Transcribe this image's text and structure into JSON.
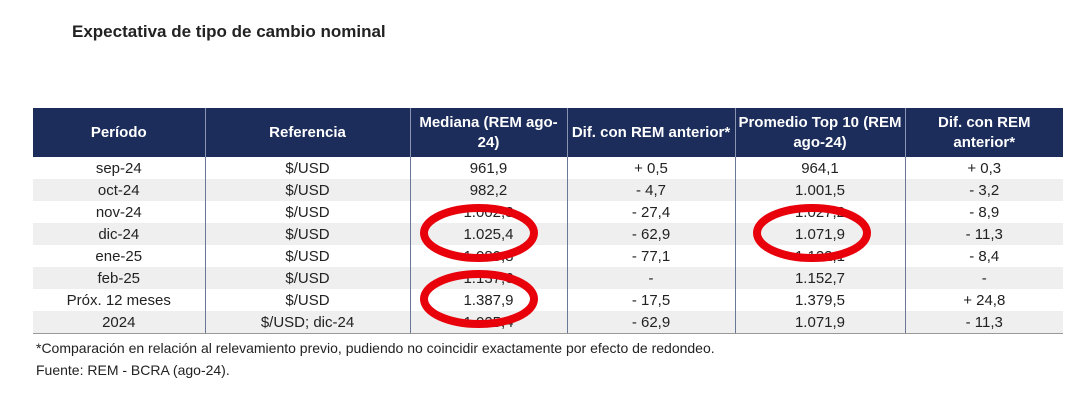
{
  "title": "Expectativa de tipo de cambio nominal",
  "headers": [
    "Período",
    "Referencia",
    "Mediana (REM ago-24)",
    "Dif. con REM anterior*",
    "Promedio Top 10 (REM ago-24)",
    "Dif. con REM anterior*"
  ],
  "rows": [
    [
      "sep-24",
      "$/USD",
      "961,9",
      "+ 0,5",
      "964,1",
      "+ 0,3"
    ],
    [
      "oct-24",
      "$/USD",
      "982,2",
      "- 4,7",
      "1.001,5",
      "- 3,2"
    ],
    [
      "nov-24",
      "$/USD",
      "1.002,3",
      "- 27,4",
      "1.027,2",
      "- 8,9"
    ],
    [
      "dic-24",
      "$/USD",
      "1.025,4",
      "- 62,9",
      "1.071,9",
      "- 11,3"
    ],
    [
      "ene-25",
      "$/USD",
      "1.080,8",
      "- 77,1",
      "1.122,1",
      "- 8,4"
    ],
    [
      "feb-25",
      "$/USD",
      "1.137,6",
      "-",
      "1.152,7",
      "-"
    ],
    [
      "Próx. 12 meses",
      "$/USD",
      "1.387,9",
      "- 17,5",
      "1.379,5",
      "+ 24,8"
    ],
    [
      "2024",
      "$/USD; dic-24",
      "1.025,4",
      "- 62,9",
      "1.071,9",
      "- 11,3"
    ]
  ],
  "footnote": "*Comparación en relación al relevamiento previo, pudiendo no coincidir exactamente por efecto de redondeo.",
  "source": "Fuente: REM - BCRA (ago-24).",
  "highlight_color": "#e8000b"
}
